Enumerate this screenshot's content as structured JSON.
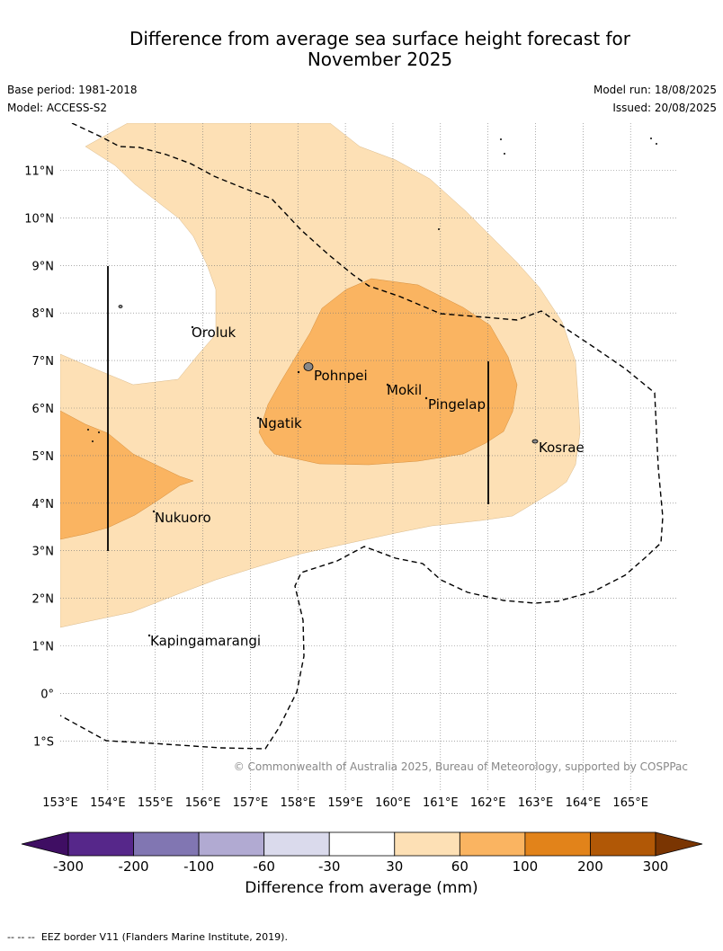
{
  "header": {
    "title_line1": "Difference from average sea surface height forecast for",
    "title_line2": "November 2025",
    "base_period": "Base period: 1981-2018",
    "model": "Model: ACCESS-S2",
    "model_run": "Model run: 18/08/2025",
    "issued": "Issued: 20/08/2025"
  },
  "map": {
    "lon_labels": [
      "153°E",
      "154°E",
      "155°E",
      "156°E",
      "157°E",
      "158°E",
      "159°E",
      "160°E",
      "161°E",
      "162°E",
      "163°E",
      "164°E",
      "165°E"
    ],
    "lat_labels": [
      "11°N",
      "10°N",
      "9°N",
      "8°N",
      "7°N",
      "6°N",
      "5°N",
      "4°N",
      "3°N",
      "2°N",
      "1°N",
      "0°",
      "1°S"
    ],
    "places": [
      "Oroluk",
      "Pohnpei",
      "Mokil",
      "Pingelap",
      "Ngatik",
      "Kosrae",
      "Nukuoro",
      "Kapingamarangi"
    ],
    "copyright": "© Commonwealth of Australia 2025, Bureau of Meteorology, supported by COSPPac"
  },
  "colorbar": {
    "ticks": [
      "-300",
      "-200",
      "-100",
      "-60",
      "-30",
      "30",
      "60",
      "100",
      "200",
      "300"
    ],
    "colors": [
      "#3f0e63",
      "#56278a",
      "#8176b2",
      "#b1aad2",
      "#dadaec",
      "#ffffff",
      "#fde0b5",
      "#fab461",
      "#e2831a",
      "#b15806",
      "#7a3502"
    ],
    "label": "Difference from average (mm)"
  },
  "footer": {
    "legend_symbol": "-- -- --",
    "legend_text": "EEZ border V11 (Flanders Marine Institute, 2019)."
  }
}
